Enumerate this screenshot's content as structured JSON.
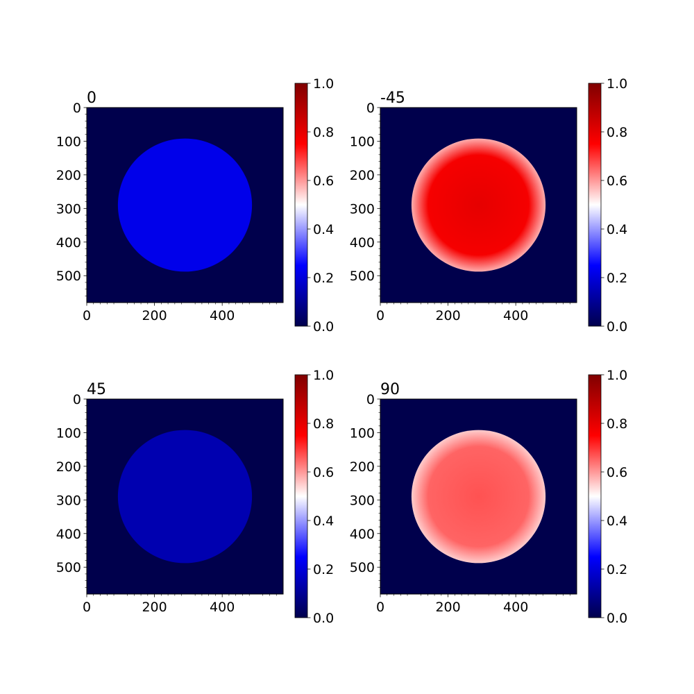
{
  "chart_data": [
    {
      "type": "heatmap",
      "title": "0",
      "xlim": [
        0,
        580
      ],
      "ylim": [
        580,
        0
      ],
      "xticks": [
        0,
        200,
        400
      ],
      "yticks": [
        0,
        100,
        200,
        300,
        400,
        500
      ],
      "background_value": 0.0,
      "disk": {
        "center_x": 290,
        "center_y": 290,
        "radius": 198,
        "mean_value": 0.22,
        "edge_value": 0.22
      },
      "colorbar": {
        "min": 0.0,
        "max": 1.0,
        "ticks": [
          "0.0",
          "0.2",
          "0.4",
          "0.6",
          "0.8",
          "1.0"
        ],
        "colormap": "seismic"
      }
    },
    {
      "type": "heatmap",
      "title": "-45",
      "xlim": [
        0,
        580
      ],
      "ylim": [
        580,
        0
      ],
      "xticks": [
        0,
        200,
        400
      ],
      "yticks": [
        0,
        100,
        200,
        300,
        400,
        500
      ],
      "background_value": 0.0,
      "disk": {
        "center_x": 290,
        "center_y": 290,
        "radius": 198,
        "mean_value": 0.8,
        "edge_value": 0.58
      },
      "colorbar": {
        "min": 0.0,
        "max": 1.0,
        "ticks": [
          "0.0",
          "0.2",
          "0.4",
          "0.6",
          "0.8",
          "1.0"
        ],
        "colormap": "seismic"
      }
    },
    {
      "type": "heatmap",
      "title": "45",
      "xlim": [
        0,
        580
      ],
      "ylim": [
        580,
        0
      ],
      "xticks": [
        0,
        200,
        400
      ],
      "yticks": [
        0,
        100,
        200,
        300,
        400,
        500
      ],
      "background_value": 0.0,
      "disk": {
        "center_x": 290,
        "center_y": 290,
        "radius": 198,
        "mean_value": 0.14,
        "edge_value": 0.14
      },
      "colorbar": {
        "min": 0.0,
        "max": 1.0,
        "ticks": [
          "0.0",
          "0.2",
          "0.4",
          "0.6",
          "0.8",
          "1.0"
        ],
        "colormap": "seismic"
      }
    },
    {
      "type": "heatmap",
      "title": "90",
      "xlim": [
        0,
        580
      ],
      "ylim": [
        580,
        0
      ],
      "xticks": [
        0,
        200,
        400
      ],
      "yticks": [
        0,
        100,
        200,
        300,
        400,
        500
      ],
      "background_value": 0.0,
      "disk": {
        "center_x": 290,
        "center_y": 290,
        "radius": 198,
        "mean_value": 0.67,
        "edge_value": 0.55
      },
      "colorbar": {
        "min": 0.0,
        "max": 1.0,
        "ticks": [
          "0.0",
          "0.2",
          "0.4",
          "0.6",
          "0.8",
          "1.0"
        ],
        "colormap": "seismic"
      }
    }
  ]
}
